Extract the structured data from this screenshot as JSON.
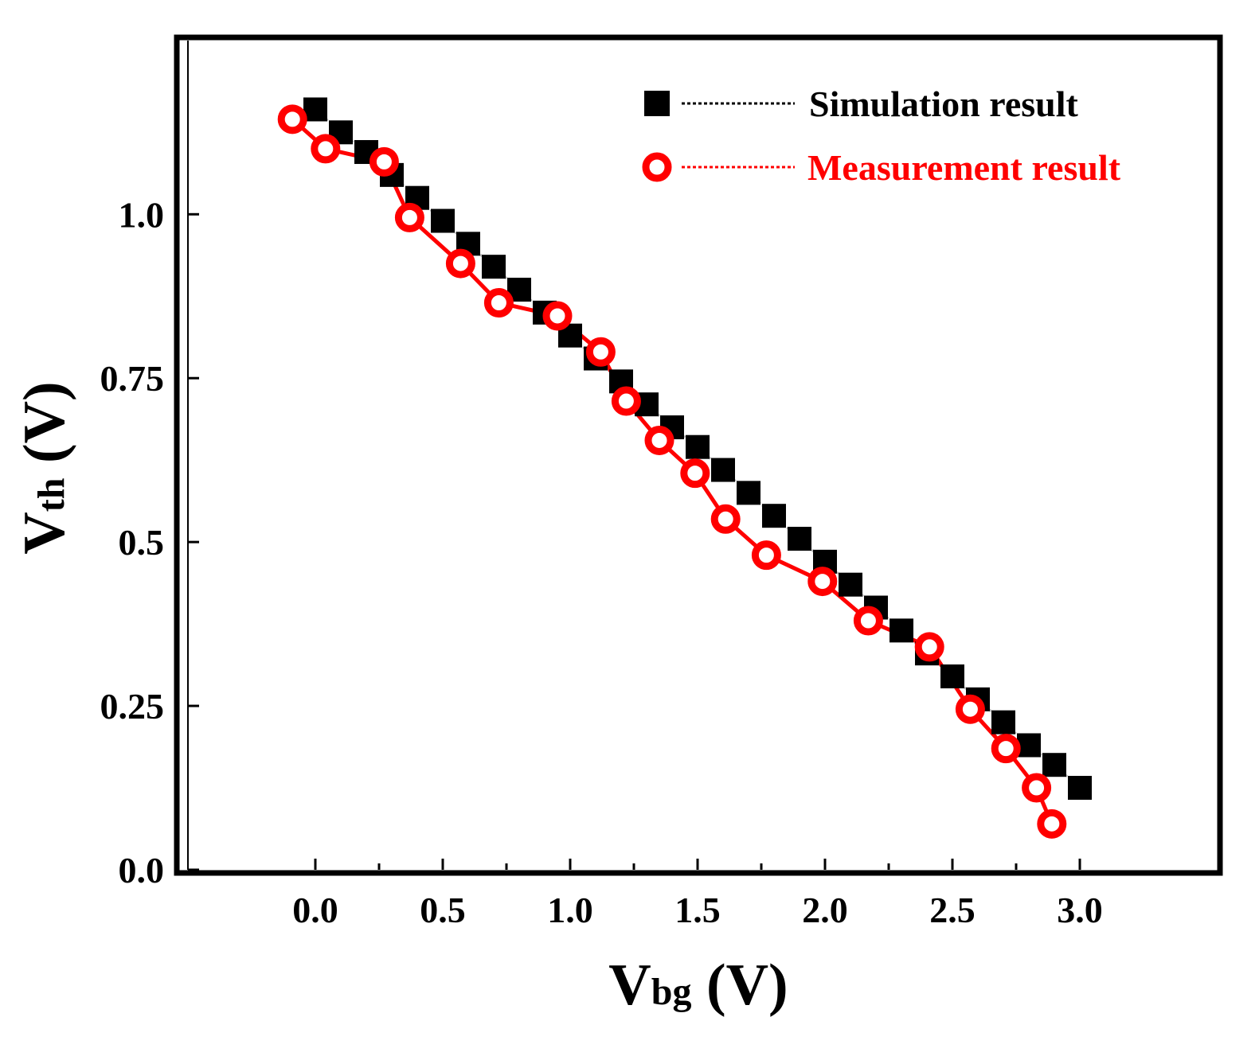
{
  "chart_data": {
    "type": "scatter",
    "title": "",
    "xlabel": {
      "main": "V",
      "sub": "bg",
      "unit": " (V)"
    },
    "ylabel": {
      "main": "V",
      "sub": "th",
      "unit": " (V)"
    },
    "xlim": [
      -0.5,
      3.55
    ],
    "ylim": [
      0.0,
      1.265
    ],
    "x_ticks": [
      0.0,
      0.5,
      1.0,
      1.5,
      2.0,
      2.5,
      3.0
    ],
    "x_tick_labels": [
      "0.0",
      "0.5",
      "1.0",
      "1.5",
      "2.0",
      "2.5",
      "3.0"
    ],
    "y_ticks": [
      0.0,
      0.25,
      0.5,
      0.75,
      1.0
    ],
    "y_tick_labels": [
      "0.0",
      "0.25",
      "0.5",
      "0.75",
      "1.0"
    ],
    "grid": false,
    "legend_position": "top-right",
    "series": [
      {
        "name": "Simulation result",
        "marker": "square",
        "line": "dotted",
        "color": "#000000",
        "x": [
          0.0,
          0.1,
          0.2,
          0.3,
          0.4,
          0.5,
          0.6,
          0.7,
          0.8,
          0.9,
          1.0,
          1.1,
          1.2,
          1.3,
          1.4,
          1.5,
          1.6,
          1.7,
          1.8,
          1.9,
          2.0,
          2.1,
          2.2,
          2.3,
          2.4,
          2.5,
          2.6,
          2.7,
          2.8,
          2.9,
          3.0
        ],
        "y": [
          1.16,
          1.125,
          1.095,
          1.06,
          1.025,
          0.99,
          0.955,
          0.92,
          0.885,
          0.85,
          0.815,
          0.78,
          0.745,
          0.71,
          0.675,
          0.645,
          0.61,
          0.575,
          0.54,
          0.505,
          0.47,
          0.435,
          0.4,
          0.365,
          0.33,
          0.295,
          0.26,
          0.225,
          0.19,
          0.16,
          0.125
        ]
      },
      {
        "name": "Measurement result",
        "marker": "open-circle",
        "line": "solid",
        "color": "#ff0000",
        "x": [
          -0.09,
          0.04,
          0.27,
          0.37,
          0.57,
          0.72,
          0.95,
          1.12,
          1.22,
          1.35,
          1.49,
          1.61,
          1.77,
          1.99,
          2.17,
          2.41,
          2.57,
          2.71,
          2.83,
          2.89
        ],
        "y": [
          1.145,
          1.1,
          1.08,
          0.995,
          0.925,
          0.865,
          0.845,
          0.79,
          0.715,
          0.655,
          0.605,
          0.535,
          0.48,
          0.44,
          0.38,
          0.34,
          0.245,
          0.185,
          0.125,
          0.07
        ]
      }
    ]
  }
}
